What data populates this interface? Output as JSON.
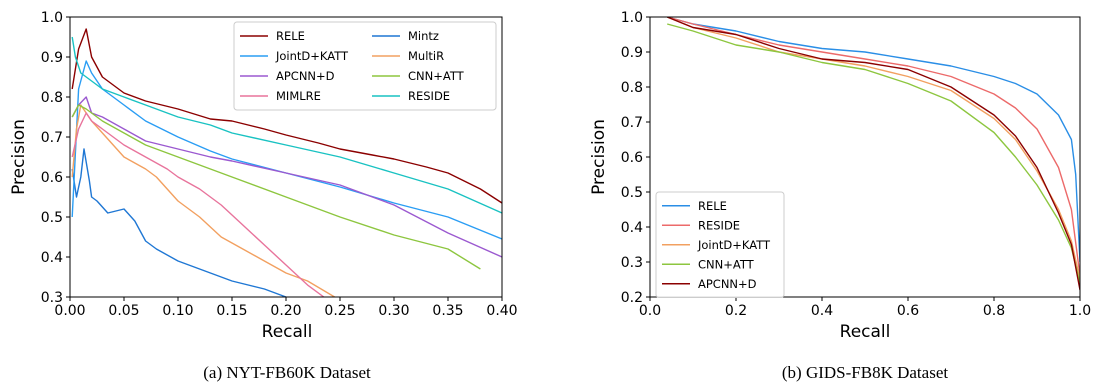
{
  "chart_data": [
    {
      "type": "line",
      "caption": "(a)  NYT-FB60K Dataset",
      "xlabel": "Recall",
      "ylabel": "Precision",
      "xlim": [
        0,
        0.4
      ],
      "ylim": [
        0.3,
        1.0
      ],
      "xticks": [
        "0.00",
        "0.05",
        "0.10",
        "0.15",
        "0.20",
        "0.25",
        "0.30",
        "0.35",
        "0.40"
      ],
      "yticks": [
        "0.3",
        "0.4",
        "0.5",
        "0.6",
        "0.7",
        "0.8",
        "0.9",
        "1.0"
      ],
      "legend_placement": "top-right",
      "legend_columns": 2,
      "series": [
        {
          "name": "RELE",
          "color": "#8b0000",
          "x": [
            0.002,
            0.008,
            0.015,
            0.02,
            0.03,
            0.05,
            0.07,
            0.1,
            0.13,
            0.15,
            0.18,
            0.2,
            0.23,
            0.25,
            0.28,
            0.3,
            0.33,
            0.35,
            0.38,
            0.4
          ],
          "y": [
            0.82,
            0.92,
            0.97,
            0.9,
            0.85,
            0.81,
            0.79,
            0.77,
            0.745,
            0.74,
            0.72,
            0.705,
            0.685,
            0.67,
            0.655,
            0.645,
            0.625,
            0.61,
            0.57,
            0.535
          ]
        },
        {
          "name": "Mintz",
          "color": "#1f77d4",
          "x": [
            0.002,
            0.006,
            0.01,
            0.013,
            0.018,
            0.02,
            0.025,
            0.035,
            0.05,
            0.06,
            0.07,
            0.08,
            0.1,
            0.12,
            0.15,
            0.18,
            0.2
          ],
          "y": [
            0.62,
            0.55,
            0.6,
            0.67,
            0.59,
            0.55,
            0.54,
            0.51,
            0.52,
            0.49,
            0.44,
            0.42,
            0.39,
            0.37,
            0.34,
            0.32,
            0.3
          ]
        },
        {
          "name": "JointD+KATT",
          "color": "#2a9df4",
          "x": [
            0.002,
            0.008,
            0.015,
            0.02,
            0.03,
            0.05,
            0.07,
            0.1,
            0.13,
            0.15,
            0.2,
            0.25,
            0.3,
            0.35,
            0.4
          ],
          "y": [
            0.5,
            0.82,
            0.89,
            0.86,
            0.82,
            0.78,
            0.74,
            0.7,
            0.665,
            0.645,
            0.61,
            0.575,
            0.535,
            0.5,
            0.445
          ]
        },
        {
          "name": "MultiR",
          "color": "#f2a060",
          "x": [
            0.002,
            0.006,
            0.01,
            0.02,
            0.03,
            0.05,
            0.07,
            0.08,
            0.1,
            0.12,
            0.14,
            0.16,
            0.18,
            0.2,
            0.22,
            0.245
          ],
          "y": [
            0.6,
            0.72,
            0.78,
            0.74,
            0.71,
            0.65,
            0.62,
            0.6,
            0.54,
            0.5,
            0.45,
            0.42,
            0.39,
            0.36,
            0.34,
            0.3
          ]
        },
        {
          "name": "APCNN+D",
          "color": "#9b59d0",
          "x": [
            0.002,
            0.008,
            0.015,
            0.02,
            0.03,
            0.05,
            0.07,
            0.1,
            0.13,
            0.15,
            0.2,
            0.25,
            0.3,
            0.35,
            0.4
          ],
          "y": [
            0.75,
            0.78,
            0.8,
            0.76,
            0.75,
            0.72,
            0.69,
            0.67,
            0.65,
            0.64,
            0.61,
            0.58,
            0.53,
            0.46,
            0.4
          ]
        },
        {
          "name": "CNN+ATT",
          "color": "#8dc63f",
          "x": [
            0.002,
            0.008,
            0.015,
            0.02,
            0.03,
            0.05,
            0.07,
            0.1,
            0.13,
            0.15,
            0.2,
            0.25,
            0.3,
            0.35,
            0.38
          ],
          "y": [
            0.75,
            0.78,
            0.77,
            0.76,
            0.74,
            0.71,
            0.68,
            0.65,
            0.62,
            0.6,
            0.55,
            0.5,
            0.455,
            0.42,
            0.37
          ]
        },
        {
          "name": "MIMLRE",
          "color": "#e8749c",
          "x": [
            0.002,
            0.008,
            0.015,
            0.02,
            0.03,
            0.05,
            0.07,
            0.09,
            0.1,
            0.12,
            0.14,
            0.16,
            0.18,
            0.2,
            0.22,
            0.235
          ],
          "y": [
            0.65,
            0.72,
            0.76,
            0.74,
            0.72,
            0.68,
            0.65,
            0.62,
            0.6,
            0.57,
            0.53,
            0.48,
            0.43,
            0.38,
            0.33,
            0.3
          ]
        },
        {
          "name": "RESIDE",
          "color": "#19c2c2",
          "x": [
            0.002,
            0.005,
            0.01,
            0.02,
            0.03,
            0.05,
            0.07,
            0.1,
            0.13,
            0.15,
            0.2,
            0.25,
            0.3,
            0.35,
            0.4
          ],
          "y": [
            0.95,
            0.9,
            0.86,
            0.84,
            0.82,
            0.8,
            0.78,
            0.75,
            0.73,
            0.71,
            0.68,
            0.65,
            0.61,
            0.57,
            0.51
          ]
        }
      ]
    },
    {
      "type": "line",
      "caption": "(b)  GIDS-FB8K Dataset",
      "xlabel": "Recall",
      "ylabel": "Precision",
      "xlim": [
        0,
        1.0
      ],
      "ylim": [
        0.2,
        1.0
      ],
      "xticks": [
        "0.0",
        "0.2",
        "0.4",
        "0.6",
        "0.8",
        "1.0"
      ],
      "yticks": [
        "0.2",
        "0.3",
        "0.4",
        "0.5",
        "0.6",
        "0.7",
        "0.8",
        "0.9",
        "1.0"
      ],
      "legend_placement": "bottom-left",
      "legend_columns": 1,
      "series": [
        {
          "name": "RELE",
          "color": "#2a8ee6",
          "x": [
            0.04,
            0.1,
            0.2,
            0.3,
            0.4,
            0.5,
            0.6,
            0.7,
            0.8,
            0.85,
            0.9,
            0.95,
            0.98,
            0.99,
            1.0
          ],
          "y": [
            1.0,
            0.98,
            0.96,
            0.93,
            0.91,
            0.9,
            0.88,
            0.86,
            0.83,
            0.81,
            0.78,
            0.72,
            0.65,
            0.55,
            0.3
          ]
        },
        {
          "name": "RESIDE",
          "color": "#ec6a6a",
          "x": [
            0.04,
            0.1,
            0.2,
            0.3,
            0.4,
            0.5,
            0.6,
            0.7,
            0.8,
            0.85,
            0.9,
            0.95,
            0.98,
            1.0
          ],
          "y": [
            1.0,
            0.98,
            0.95,
            0.92,
            0.9,
            0.88,
            0.86,
            0.83,
            0.78,
            0.74,
            0.68,
            0.57,
            0.45,
            0.26
          ]
        },
        {
          "name": "JointD+KATT",
          "color": "#f2a060",
          "x": [
            0.04,
            0.1,
            0.2,
            0.3,
            0.4,
            0.5,
            0.6,
            0.7,
            0.8,
            0.85,
            0.9,
            0.95,
            0.98,
            1.0
          ],
          "y": [
            1.0,
            0.97,
            0.94,
            0.9,
            0.88,
            0.86,
            0.83,
            0.79,
            0.71,
            0.65,
            0.56,
            0.45,
            0.36,
            0.25
          ]
        },
        {
          "name": "CNN+ATT",
          "color": "#8dc63f",
          "x": [
            0.04,
            0.1,
            0.2,
            0.3,
            0.4,
            0.5,
            0.6,
            0.7,
            0.8,
            0.85,
            0.9,
            0.95,
            0.98,
            1.0
          ],
          "y": [
            0.98,
            0.96,
            0.92,
            0.9,
            0.87,
            0.85,
            0.81,
            0.76,
            0.67,
            0.6,
            0.52,
            0.42,
            0.34,
            0.24
          ]
        },
        {
          "name": "APCNN+D",
          "color": "#8b0000",
          "x": [
            0.04,
            0.1,
            0.2,
            0.3,
            0.4,
            0.5,
            0.6,
            0.7,
            0.8,
            0.85,
            0.9,
            0.95,
            0.98,
            1.0
          ],
          "y": [
            1.0,
            0.97,
            0.95,
            0.91,
            0.88,
            0.87,
            0.85,
            0.8,
            0.72,
            0.66,
            0.57,
            0.44,
            0.35,
            0.22
          ]
        }
      ]
    }
  ]
}
